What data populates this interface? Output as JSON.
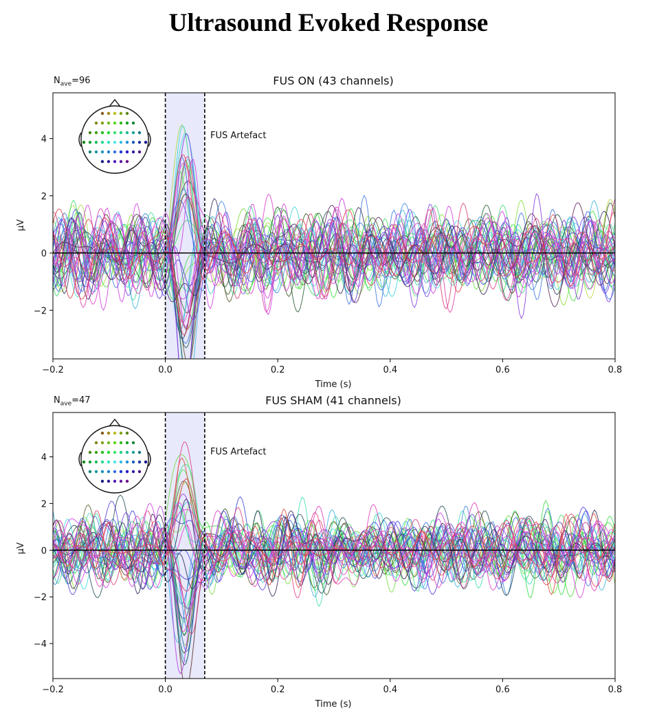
{
  "figure_title": "Ultrasound Evoked Response",
  "chart_data": [
    {
      "type": "line",
      "title": "FUS ON (43 channels)",
      "n_ave_label": "N",
      "n_ave_sub": "ave",
      "n_ave_value": "=96",
      "xlabel": "Time (s)",
      "ylabel": "µV",
      "xlim": [
        -0.2,
        0.8
      ],
      "ylim": [
        -3.7,
        5.6
      ],
      "xticks": [
        -0.2,
        0.0,
        0.2,
        0.4,
        0.6,
        0.8
      ],
      "xtick_labels": [
        "−0.2",
        "0.0",
        "0.2",
        "0.4",
        "0.6",
        "0.8"
      ],
      "yticks": [
        -2,
        0,
        2,
        4
      ],
      "ytick_labels": [
        "−2",
        "0",
        "2",
        "4"
      ],
      "artefact_span": [
        0.0,
        0.07
      ],
      "artefact_label": "FUS Artefact",
      "channel_count": 43,
      "peak_positive": 5.2,
      "peak_negative": -3.3
    },
    {
      "type": "line",
      "title": "FUS SHAM (41 channels)",
      "n_ave_label": "N",
      "n_ave_sub": "ave",
      "n_ave_value": "=47",
      "xlabel": "Time (s)",
      "ylabel": "µV",
      "xlim": [
        -0.2,
        0.8
      ],
      "ylim": [
        -5.5,
        5.9
      ],
      "xticks": [
        -0.2,
        0.0,
        0.2,
        0.4,
        0.6,
        0.8
      ],
      "xtick_labels": [
        "−0.2",
        "0.0",
        "0.2",
        "0.4",
        "0.6",
        "0.8"
      ],
      "yticks": [
        -4,
        -2,
        0,
        2,
        4
      ],
      "ytick_labels": [
        "−4",
        "−2",
        "0",
        "2",
        "4"
      ],
      "artefact_span": [
        0.0,
        0.07
      ],
      "artefact_label": "FUS Artefact",
      "channel_count": 41,
      "peak_positive": 5.4,
      "peak_negative": -4.9
    }
  ],
  "colors": {
    "artefact_fill": "#e8e9fb",
    "zero_line": "#000000"
  }
}
